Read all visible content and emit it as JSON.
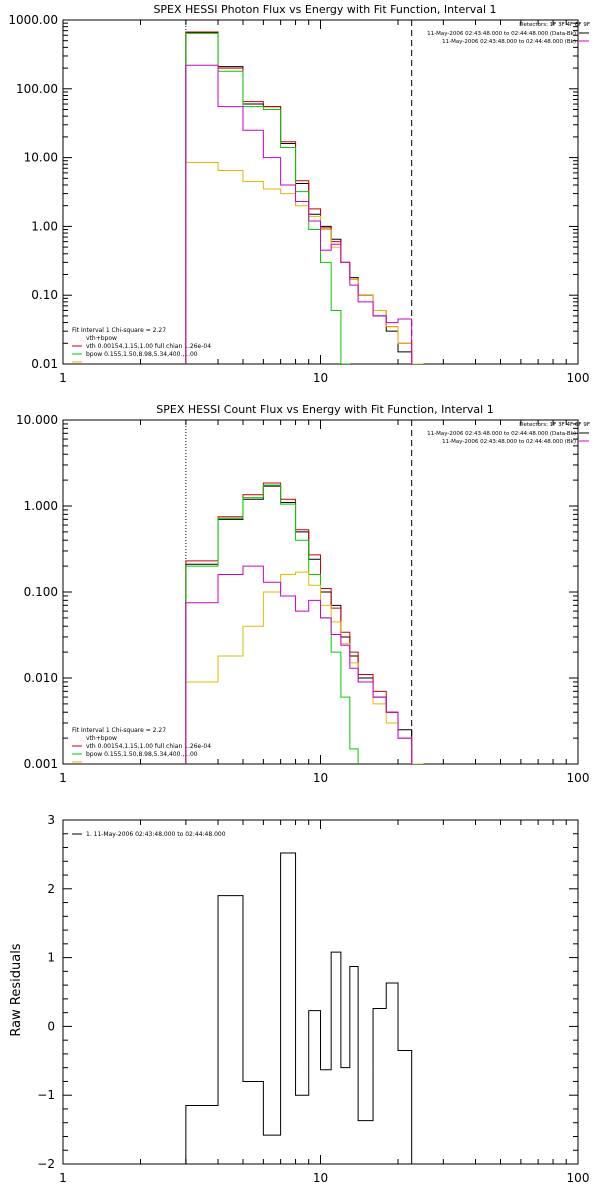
{
  "colors": {
    "total": "#000000",
    "model": "#cc0000",
    "vth": "#00cc00",
    "bpow": "#e6b800",
    "backsub": "#cc00cc",
    "axes": "#000000"
  },
  "chart_data": [
    {
      "type": "line",
      "title": "SPEX HESSI Photon Flux vs Energy with Fit Function, Interval 1",
      "xscale": "log",
      "yscale": "log",
      "xlim": [
        1,
        100
      ],
      "ylim": [
        0.01,
        1000
      ],
      "x_ticks": [
        "1",
        "10",
        "100"
      ],
      "y_ticks": [
        "1000.00",
        "100.00",
        "10.00",
        "1.00",
        "0.10",
        "0.01"
      ],
      "detectors_label": "Detectors: 1F 3F 4F 6F 9F",
      "legend_tr": [
        {
          "text": "11-May-2006 02:43:48.000 to 02:44:48.000 (Data-Bk)",
          "color_key": "total"
        },
        {
          "text": "11-May-2006 02:43:48.000 to 02:44:48.000 (Bk)",
          "color_key": "backsub"
        }
      ],
      "legend_bl": [
        {
          "text": "Fit Interval 1   Chi-square = 2.27",
          "color_key": null
        },
        {
          "text": "vth+bpow",
          "color_key": "model"
        },
        {
          "text": "vth 0.00154,1.15,1.00  full chian 1.26e-04",
          "color_key": "vth"
        },
        {
          "text": "bpow 0.155,1.50,8.98,5.34,400.,1.00",
          "color_key": "bpow"
        }
      ],
      "edges": [
        3,
        4,
        5,
        6,
        7,
        8,
        9,
        10,
        11,
        12,
        13,
        14,
        16,
        18,
        20,
        22.6,
        25
      ],
      "vlines": [
        {
          "x": 3,
          "style": "dotted"
        },
        {
          "x": 22.6,
          "style": "dashed"
        }
      ],
      "series": [
        {
          "color_key": "total",
          "values": [
            650,
            210,
            60,
            55,
            16,
            4.2,
            1.5,
            1.0,
            0.65,
            0.3,
            0.18,
            0.1,
            0.05,
            0.03,
            0.015,
            null
          ]
        },
        {
          "color_key": "model",
          "values": [
            670,
            200,
            65,
            55,
            17,
            4.6,
            1.8,
            0.95,
            0.6,
            0.3,
            0.17,
            0.1,
            0.06,
            0.035,
            0.02,
            0.01
          ]
        },
        {
          "color_key": "vth",
          "values": [
            640,
            180,
            55,
            50,
            14,
            3.2,
            0.9,
            0.3,
            0.06,
            0.01,
            null,
            null,
            null,
            null,
            null,
            null
          ]
        },
        {
          "color_key": "bpow",
          "values": [
            8.5,
            6.5,
            4.5,
            3.5,
            3.0,
            2.0,
            1.4,
            0.9,
            0.5,
            0.3,
            0.17,
            0.1,
            0.06,
            0.035,
            0.02,
            0.01
          ]
        },
        {
          "color_key": "backsub",
          "values": [
            220,
            55,
            25,
            10,
            4,
            2.3,
            1.2,
            0.45,
            0.55,
            0.3,
            0.14,
            0.08,
            0.05,
            0.04,
            0.045,
            null
          ]
        }
      ]
    },
    {
      "type": "line",
      "title": "SPEX HESSI Count Flux vs Energy with Fit Function, Interval 1",
      "xscale": "log",
      "yscale": "log",
      "xlim": [
        1,
        100
      ],
      "ylim": [
        0.001,
        10
      ],
      "x_ticks": [
        "1",
        "10",
        "100"
      ],
      "y_ticks": [
        "10.000",
        "1.000",
        "0.100",
        "0.010",
        "0.001"
      ],
      "detectors_label": "Detectors: 1F 3F 4F 6F 9F",
      "legend_tr": [
        {
          "text": "11-May-2006 02:43:48.000 to 02:44:48.000 (Data-Bk)",
          "color_key": "total"
        },
        {
          "text": "11-May-2006 02:43:48.000 to 02:44:48.000 (Bk)",
          "color_key": "backsub"
        }
      ],
      "legend_bl": [
        {
          "text": "Fit Interval 1   Chi-square = 2.27",
          "color_key": null
        },
        {
          "text": "vth+bpow",
          "color_key": "model"
        },
        {
          "text": "vth 0.00154,1.15,1.00  full chian 1.26e-04",
          "color_key": "vth"
        },
        {
          "text": "bpow 0.155,1.50,8.98,5.34,400.,1.00",
          "color_key": "bpow"
        }
      ],
      "edges": [
        3,
        4,
        5,
        6,
        7,
        8,
        9,
        10,
        11,
        12,
        13,
        14,
        16,
        18,
        20,
        22.6,
        25
      ],
      "vlines": [
        {
          "x": 3,
          "style": "dotted"
        },
        {
          "x": 22.6,
          "style": "dashed"
        }
      ],
      "series": [
        {
          "color_key": "total",
          "values": [
            0.21,
            0.7,
            1.2,
            1.7,
            1.1,
            0.5,
            0.24,
            0.1,
            0.07,
            0.03,
            0.018,
            0.01,
            0.006,
            0.004,
            0.0025,
            null
          ]
        },
        {
          "color_key": "model",
          "values": [
            0.23,
            0.75,
            1.35,
            1.85,
            1.2,
            0.53,
            0.27,
            0.11,
            0.065,
            0.034,
            0.02,
            0.011,
            0.007,
            0.004,
            0.002,
            0.001
          ]
        },
        {
          "color_key": "vth",
          "values": [
            0.2,
            0.72,
            1.25,
            1.75,
            1.05,
            0.4,
            0.16,
            0.05,
            0.02,
            0.006,
            0.0015,
            null,
            null,
            null,
            null,
            null
          ]
        },
        {
          "color_key": "bpow",
          "values": [
            0.009,
            0.018,
            0.04,
            0.1,
            0.16,
            0.17,
            0.12,
            0.07,
            0.045,
            0.025,
            0.015,
            0.009,
            0.005,
            0.003,
            0.002,
            0.001
          ]
        },
        {
          "color_key": "backsub",
          "values": [
            0.075,
            0.16,
            0.2,
            0.13,
            0.09,
            0.06,
            0.08,
            0.05,
            0.032,
            0.024,
            0.013,
            0.009,
            0.006,
            0.004,
            0.002,
            null
          ]
        }
      ]
    },
    {
      "type": "line",
      "title": "",
      "xscale": "log",
      "yscale": "linear",
      "xlim": [
        1,
        100
      ],
      "ylim": [
        -2,
        3
      ],
      "x_ticks": [
        "1",
        "10",
        "100"
      ],
      "y_ticks": [
        "3",
        "2",
        "1",
        "0",
        "−1",
        "−2"
      ],
      "y_tick_values": [
        3,
        2,
        1,
        0,
        -1,
        -2
      ],
      "ylabel": "Raw Residuals",
      "legend_tl": [
        {
          "text": "1. 11-May-2006 02:43:48.000 to 02:44:48.000",
          "color_key": "total"
        }
      ],
      "edges": [
        3,
        4,
        5,
        6,
        7,
        8,
        9,
        10,
        11,
        12,
        13,
        14,
        16,
        18,
        20,
        22.6
      ],
      "series": [
        {
          "color_key": "total",
          "values": [
            -1.15,
            1.9,
            -0.8,
            -1.58,
            2.52,
            -1.0,
            0.23,
            -0.63,
            1.08,
            -0.6,
            0.87,
            -1.37,
            0.26,
            0.63,
            -0.35
          ]
        }
      ]
    }
  ]
}
